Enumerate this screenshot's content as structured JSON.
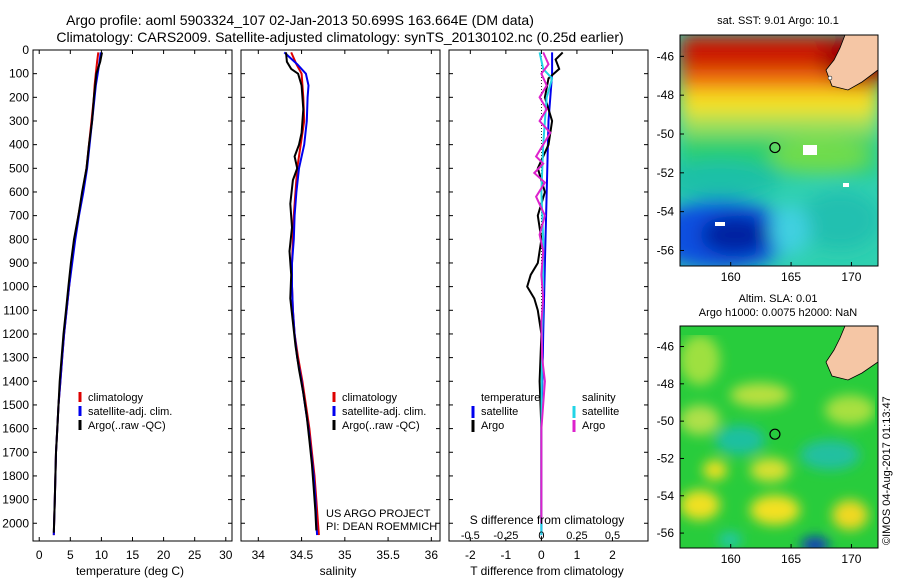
{
  "header": {
    "title_line1": "Argo profile: aoml 5903324_107 02-Jan-2013 50.699S 163.664E (DM data)",
    "title_line2": "Climatology: CARS2009. Satellite-adjusted climatology: synTS_20130102.nc (0.25d earlier)"
  },
  "colors": {
    "climatology": "#dd0000",
    "satellite_clim": "#0000ee",
    "argo": "#000000",
    "satellite_salinity": "#22d4e6",
    "argo_salinity": "#dd22cc"
  },
  "chart_data": [
    {
      "id": "temperature",
      "type": "line",
      "xlabel": "temperature (deg C)",
      "ylabel": "",
      "xlim": [
        -1,
        31
      ],
      "ylim": [
        2075,
        0
      ],
      "xticks": [
        "0",
        "5",
        "10",
        "15",
        "20",
        "25",
        "30"
      ],
      "yticks": [
        "0",
        "100",
        "200",
        "300",
        "400",
        "500",
        "600",
        "700",
        "800",
        "900",
        "1000",
        "1100",
        "1200",
        "1300",
        "1400",
        "1500",
        "1600",
        "1700",
        "1800",
        "1900",
        "2000"
      ],
      "legend": [
        "climatology",
        "satellite-adj. clim.",
        "Argo(..raw -QC)"
      ],
      "legend_position": "center",
      "series": [
        {
          "name": "climatology",
          "color": "#dd0000",
          "points": [
            [
              9.5,
              10
            ],
            [
              9.3,
              50
            ],
            [
              9.1,
              100
            ],
            [
              8.9,
              150
            ],
            [
              8.8,
              200
            ],
            [
              8.4,
              300
            ],
            [
              8.0,
              400
            ],
            [
              7.6,
              500
            ],
            [
              7.0,
              600
            ],
            [
              6.3,
              700
            ],
            [
              5.7,
              800
            ],
            [
              5.2,
              900
            ],
            [
              4.8,
              1000
            ],
            [
              4.4,
              1100
            ],
            [
              4.0,
              1200
            ],
            [
              3.7,
              1300
            ],
            [
              3.4,
              1400
            ],
            [
              3.1,
              1500
            ],
            [
              2.9,
              1600
            ],
            [
              2.7,
              1700
            ],
            [
              2.6,
              1800
            ],
            [
              2.5,
              1900
            ],
            [
              2.4,
              2000
            ],
            [
              2.35,
              2050
            ]
          ]
        },
        {
          "name": "satellite-adj. clim.",
          "color": "#0000ee",
          "points": [
            [
              9.9,
              10
            ],
            [
              9.7,
              50
            ],
            [
              9.4,
              100
            ],
            [
              9.1,
              150
            ],
            [
              8.9,
              200
            ],
            [
              8.5,
              300
            ],
            [
              8.1,
              400
            ],
            [
              7.7,
              500
            ],
            [
              7.1,
              600
            ],
            [
              6.4,
              700
            ],
            [
              5.8,
              800
            ],
            [
              5.3,
              900
            ],
            [
              4.8,
              1000
            ],
            [
              4.4,
              1100
            ],
            [
              4.0,
              1200
            ],
            [
              3.7,
              1300
            ],
            [
              3.4,
              1400
            ],
            [
              3.1,
              1500
            ],
            [
              2.9,
              1600
            ],
            [
              2.7,
              1700
            ],
            [
              2.6,
              1800
            ],
            [
              2.5,
              1900
            ],
            [
              2.4,
              2000
            ],
            [
              2.35,
              2050
            ]
          ]
        },
        {
          "name": "Argo(..raw -QC)",
          "color": "#000000",
          "points": [
            [
              10.1,
              10
            ],
            [
              9.8,
              50
            ],
            [
              9.2,
              100
            ],
            [
              9.0,
              150
            ],
            [
              8.8,
              200
            ],
            [
              8.5,
              300
            ],
            [
              8.0,
              400
            ],
            [
              7.6,
              500
            ],
            [
              6.9,
              600
            ],
            [
              6.3,
              700
            ],
            [
              5.6,
              800
            ],
            [
              5.1,
              900
            ],
            [
              4.7,
              1000
            ],
            [
              4.3,
              1100
            ],
            [
              3.9,
              1200
            ],
            [
              3.6,
              1300
            ],
            [
              3.3,
              1400
            ],
            [
              3.1,
              1500
            ],
            [
              2.9,
              1600
            ],
            [
              2.7,
              1700
            ],
            [
              2.6,
              1800
            ],
            [
              2.5,
              1900
            ],
            [
              2.4,
              2000
            ],
            [
              2.35,
              2040
            ]
          ]
        }
      ]
    },
    {
      "id": "salinity",
      "type": "line",
      "xlabel": "salinity",
      "ylabel": "",
      "xlim": [
        33.8,
        36.1
      ],
      "ylim": [
        2075,
        0
      ],
      "xticks": [
        "34",
        "34.5",
        "35",
        "35.5",
        "36"
      ],
      "legend": [
        "climatology",
        "satellite-adj. clim.",
        "Argo(..raw -QC)"
      ],
      "legend_position": "center-right",
      "annotation_line1": "US ARGO PROJECT",
      "annotation_line2": "PI: DEAN ROEMMICH",
      "series": [
        {
          "name": "climatology",
          "color": "#dd0000",
          "points": [
            [
              34.38,
              10
            ],
            [
              34.44,
              60
            ],
            [
              34.5,
              100
            ],
            [
              34.52,
              200
            ],
            [
              34.53,
              300
            ],
            [
              34.49,
              400
            ],
            [
              34.45,
              500
            ],
            [
              34.43,
              600
            ],
            [
              34.41,
              700
            ],
            [
              34.4,
              800
            ],
            [
              34.39,
              900
            ],
            [
              34.39,
              1000
            ],
            [
              34.4,
              1100
            ],
            [
              34.42,
              1200
            ],
            [
              34.46,
              1300
            ],
            [
              34.51,
              1400
            ],
            [
              34.55,
              1500
            ],
            [
              34.59,
              1600
            ],
            [
              34.62,
              1700
            ],
            [
              34.65,
              1800
            ],
            [
              34.67,
              1900
            ],
            [
              34.69,
              2000
            ],
            [
              34.7,
              2050
            ]
          ]
        },
        {
          "name": "satellite-adj. clim.",
          "color": "#0000ee",
          "points": [
            [
              34.3,
              10
            ],
            [
              34.45,
              60
            ],
            [
              34.55,
              100
            ],
            [
              34.58,
              150
            ],
            [
              34.57,
              200
            ],
            [
              34.56,
              300
            ],
            [
              34.53,
              400
            ],
            [
              34.47,
              500
            ],
            [
              34.44,
              600
            ],
            [
              34.42,
              700
            ],
            [
              34.41,
              800
            ],
            [
              34.39,
              900
            ],
            [
              34.39,
              1000
            ],
            [
              34.4,
              1100
            ],
            [
              34.42,
              1200
            ],
            [
              34.45,
              1300
            ],
            [
              34.5,
              1400
            ],
            [
              34.54,
              1500
            ],
            [
              34.58,
              1600
            ],
            [
              34.61,
              1700
            ],
            [
              34.64,
              1800
            ],
            [
              34.66,
              1900
            ],
            [
              34.67,
              2000
            ],
            [
              34.68,
              2050
            ]
          ]
        },
        {
          "name": "Argo(..raw -QC)",
          "color": "#000000",
          "points": [
            [
              34.32,
              10
            ],
            [
              34.33,
              50
            ],
            [
              34.38,
              80
            ],
            [
              34.46,
              100
            ],
            [
              34.5,
              150
            ],
            [
              34.52,
              250
            ],
            [
              34.5,
              350
            ],
            [
              34.47,
              400
            ],
            [
              34.42,
              450
            ],
            [
              34.45,
              500
            ],
            [
              34.4,
              550
            ],
            [
              34.37,
              650
            ],
            [
              34.39,
              750
            ],
            [
              34.36,
              850
            ],
            [
              34.38,
              950
            ],
            [
              34.37,
              1050
            ],
            [
              34.4,
              1150
            ],
            [
              34.43,
              1250
            ],
            [
              34.47,
              1350
            ],
            [
              34.52,
              1450
            ],
            [
              34.56,
              1550
            ],
            [
              34.59,
              1650
            ],
            [
              34.62,
              1750
            ],
            [
              34.64,
              1850
            ],
            [
              34.66,
              1950
            ],
            [
              34.67,
              2030
            ]
          ]
        }
      ]
    },
    {
      "id": "differences",
      "type": "line",
      "xlabel": "T difference from climatology",
      "xlabel_top": "S difference from climatology",
      "xlim": [
        -2.6,
        3.0
      ],
      "ylim": [
        2075,
        0
      ],
      "xticks": [
        "-2",
        "-1",
        "0",
        "1",
        "2"
      ],
      "xticks_top": [
        "-0.5",
        "-0.25",
        "0",
        "0.25",
        "0.5"
      ],
      "legend_temperature_header": "temperature",
      "legend_salinity_header": "salinity",
      "legend": [
        "satellite",
        "Argo",
        "satellite",
        "Argo"
      ],
      "series": [
        {
          "name": "temperature satellite",
          "color": "#0000ee",
          "points": [
            [
              0.3,
              10
            ],
            [
              0.3,
              100
            ],
            [
              0.2,
              300
            ],
            [
              0.15,
              600
            ],
            [
              0.1,
              900
            ],
            [
              0.05,
              1200
            ],
            [
              0.0,
              1600
            ],
            [
              0.0,
              2050
            ]
          ]
        },
        {
          "name": "temperature Argo",
          "color": "#000000",
          "points": [
            [
              0.6,
              10
            ],
            [
              0.4,
              40
            ],
            [
              0.5,
              80
            ],
            [
              0.2,
              120
            ],
            [
              0.1,
              200
            ],
            [
              0.3,
              300
            ],
            [
              0.2,
              400
            ],
            [
              -0.1,
              500
            ],
            [
              0.1,
              600
            ],
            [
              -0.1,
              700
            ],
            [
              0.0,
              800
            ],
            [
              -0.1,
              900
            ],
            [
              -0.3,
              950
            ],
            [
              -0.4,
              1000
            ],
            [
              -0.2,
              1050
            ],
            [
              -0.1,
              1100
            ],
            [
              0.0,
              1200
            ],
            [
              -0.05,
              1400
            ],
            [
              0.0,
              1600
            ],
            [
              0.0,
              2000
            ]
          ]
        },
        {
          "name": "salinity satellite",
          "color": "#22d4e6",
          "points": [
            [
              -0.05,
              10
            ],
            [
              0.05,
              80
            ],
            [
              0.3,
              120
            ],
            [
              0.15,
              200
            ],
            [
              0.1,
              300
            ],
            [
              0.05,
              400
            ],
            [
              0.0,
              600
            ],
            [
              0.05,
              800
            ],
            [
              0.05,
              1000
            ],
            [
              0.02,
              1200
            ],
            [
              0.0,
              1600
            ],
            [
              0.0,
              2050
            ]
          ]
        },
        {
          "name": "salinity Argo",
          "color": "#dd22cc",
          "points": [
            [
              0.05,
              10
            ],
            [
              0.2,
              60
            ],
            [
              0.0,
              100
            ],
            [
              0.15,
              150
            ],
            [
              -0.05,
              200
            ],
            [
              0.15,
              250
            ],
            [
              -0.05,
              300
            ],
            [
              0.25,
              350
            ],
            [
              -0.15,
              450
            ],
            [
              0.05,
              480
            ],
            [
              -0.2,
              520
            ],
            [
              0.1,
              560
            ],
            [
              -0.15,
              620
            ],
            [
              0.1,
              700
            ],
            [
              -0.05,
              780
            ],
            [
              0.05,
              850
            ],
            [
              0.0,
              950
            ],
            [
              0.05,
              1050
            ],
            [
              0.0,
              1150
            ],
            [
              0.02,
              1300
            ],
            [
              0.1,
              1400
            ],
            [
              0.0,
              1600
            ],
            [
              0.0,
              2000
            ]
          ]
        }
      ]
    },
    {
      "id": "sst_map",
      "type": "heatmap",
      "title": "sat. SST: 9.01  Argo: 10.1",
      "xticks": [
        "160",
        "165",
        "170"
      ],
      "yticks": [
        "-46",
        "-48",
        "-50",
        "-52",
        "-54",
        "-56"
      ],
      "xlim": [
        155.8,
        172.2
      ],
      "ylim": [
        -56.8,
        -44.9
      ],
      "argo_position": [
        163.664,
        -50.699
      ]
    },
    {
      "id": "sla_map",
      "type": "heatmap",
      "title": "Altim. SLA: 0.01",
      "subtitle": "Argo h1000: 0.0075  h2000: NaN",
      "xticks": [
        "160",
        "165",
        "170"
      ],
      "yticks": [
        "-46",
        "-48",
        "-50",
        "-52",
        "-54",
        "-56"
      ],
      "xlim": [
        155.8,
        172.2
      ],
      "ylim": [
        -56.8,
        -44.9
      ],
      "argo_position": [
        163.664,
        -50.699
      ]
    }
  ],
  "footer": {
    "credit": "©IMOS 04-Aug-2017 01:13:47"
  }
}
